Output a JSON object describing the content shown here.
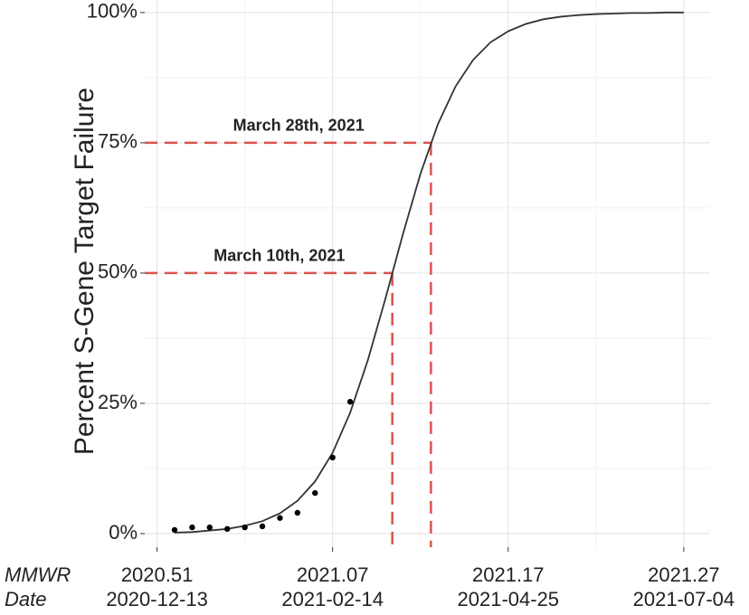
{
  "chart_data": {
    "type": "line",
    "y_label": "Percent S-Gene Target Failure",
    "x_row_labels": [
      "MMWR",
      "Date"
    ],
    "xlim": [
      -0.7,
      31.5
    ],
    "xticks": [
      {
        "value": 0,
        "label": "2020.51",
        "date_label": "2020-12-13"
      },
      {
        "value": 10,
        "label": "2021.07",
        "date_label": "2021-02-14"
      },
      {
        "value": 20,
        "label": "2021.17",
        "date_label": "2021-04-25"
      },
      {
        "value": 30,
        "label": "2021.27",
        "date_label": "2021-07-04"
      }
    ],
    "ylim": [
      -2.6,
      102.4
    ],
    "yticks": [
      {
        "value": 0,
        "label": "0%"
      },
      {
        "value": 25,
        "label": "25%"
      },
      {
        "value": 50,
        "label": "50%"
      },
      {
        "value": 75,
        "label": "75%"
      },
      {
        "value": 100,
        "label": "100%"
      }
    ],
    "grid": true,
    "points": {
      "color": "#000000",
      "x": [
        1,
        2,
        3,
        4,
        5,
        6,
        7,
        8,
        9,
        10,
        11
      ],
      "values": [
        0.7,
        1.2,
        1.2,
        0.9,
        1.2,
        1.4,
        3.0,
        4.0,
        7.8,
        14.6,
        25.3
      ]
    },
    "fit": {
      "color": "#333333",
      "x": [
        1,
        2,
        3,
        4,
        5,
        6,
        7,
        8,
        9,
        10,
        11,
        12,
        13,
        14,
        15,
        16,
        17,
        18,
        19,
        20,
        21,
        22,
        23,
        24,
        25,
        26,
        27,
        28,
        29,
        30
      ],
      "values": [
        0.2,
        0.3,
        0.6,
        0.9,
        1.5,
        2.4,
        3.9,
        6.3,
        10.0,
        15.5,
        23.2,
        33.2,
        45.0,
        57.4,
        69.0,
        78.6,
        85.8,
        90.9,
        94.3,
        96.4,
        97.8,
        98.7,
        99.2,
        99.5,
        99.7,
        99.8,
        99.9,
        99.9,
        100.0,
        100.0
      ]
    },
    "reference_lines": [
      {
        "x": 13.4,
        "y": 50,
        "label": "March 10th, 2021"
      },
      {
        "x": 15.6,
        "y": 75,
        "label": "March 28th, 2021"
      }
    ],
    "reference_color": "#d9534f"
  }
}
